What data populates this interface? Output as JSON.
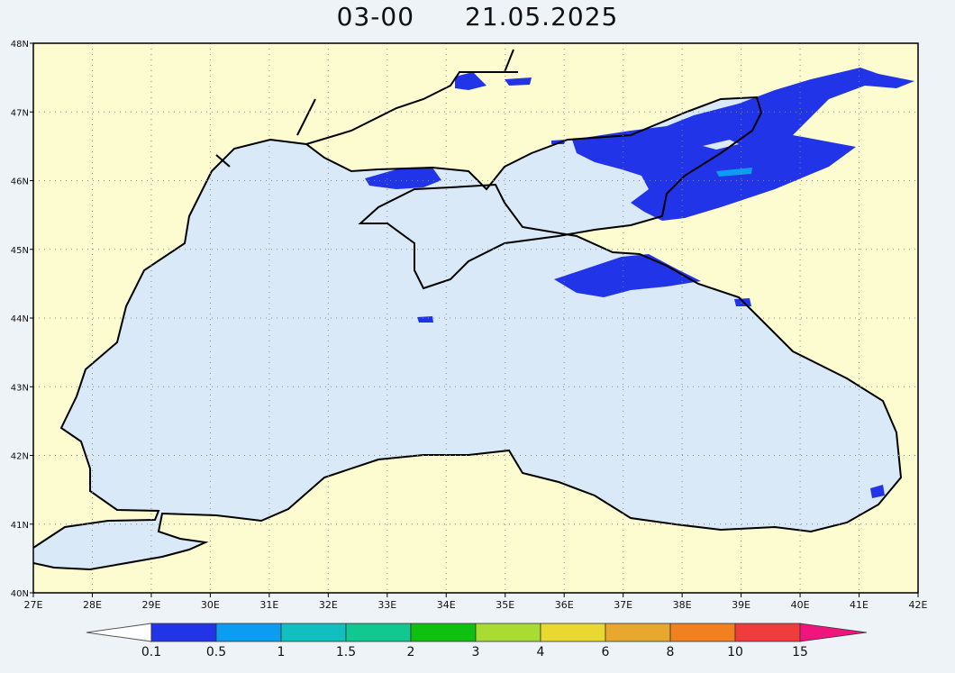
{
  "title": {
    "time": "03-00",
    "date": "21.05.2025"
  },
  "map": {
    "region": "Black Sea",
    "lon_range": [
      27,
      42
    ],
    "lat_range": [
      40,
      48
    ],
    "lon_labels": [
      "27E",
      "28E",
      "29E",
      "30E",
      "31E",
      "32E",
      "33E",
      "34E",
      "35E",
      "36E",
      "37E",
      "38E",
      "39E",
      "40E",
      "41E",
      "42E"
    ],
    "lat_labels": [
      "40N",
      "41N",
      "42N",
      "43N",
      "44N",
      "45N",
      "46N",
      "47N",
      "48N"
    ],
    "grid": "dotted",
    "colors": {
      "land": "#fdfbd0",
      "sea_low": "#d9e9f7",
      "coast": "#000000"
    }
  },
  "colorbar": {
    "labels": [
      "0.1",
      "0.5",
      "1",
      "1.5",
      "2",
      "3",
      "4",
      "6",
      "8",
      "10",
      "15"
    ],
    "colors": [
      "#2234e8",
      "#0b9ef0",
      "#10c0c0",
      "#10c890",
      "#10c010",
      "#a8dc32",
      "#e8d830",
      "#e8a830",
      "#f08020",
      "#f03c3c",
      "#f0147c"
    ],
    "under_color": "#ffffff"
  }
}
